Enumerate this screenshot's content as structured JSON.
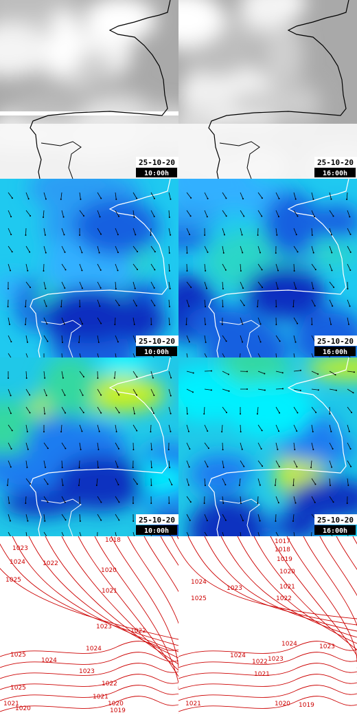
{
  "panels": [
    {
      "date": "25-10-20",
      "time": "10:00h"
    },
    {
      "date": "25-10-20",
      "time": "16:00h"
    },
    {
      "date": "25-10-20",
      "time": "10:00h"
    },
    {
      "date": "25-10-20",
      "time": "16:00h"
    },
    {
      "date": "25-10-20",
      "time": "10:00h"
    },
    {
      "date": "25-10-20",
      "time": "16:00h"
    }
  ],
  "isobar_maps": [
    {
      "labels": [
        "1018",
        "1023",
        "1024",
        "1022",
        "1020",
        "1025",
        "1021",
        "1023",
        "1022",
        "1024",
        "1025",
        "1024",
        "1023",
        "1022",
        "1025",
        "1021",
        "1020",
        "1019",
        "1020",
        "1021"
      ]
    },
    {
      "labels": [
        "1017",
        "1018",
        "1019",
        "1020",
        "1021",
        "1022",
        "1024",
        "1023",
        "1025",
        "1024",
        "1023",
        "1024",
        "1022",
        "1023",
        "1021",
        "1020",
        "1019",
        "1021"
      ]
    }
  ]
}
